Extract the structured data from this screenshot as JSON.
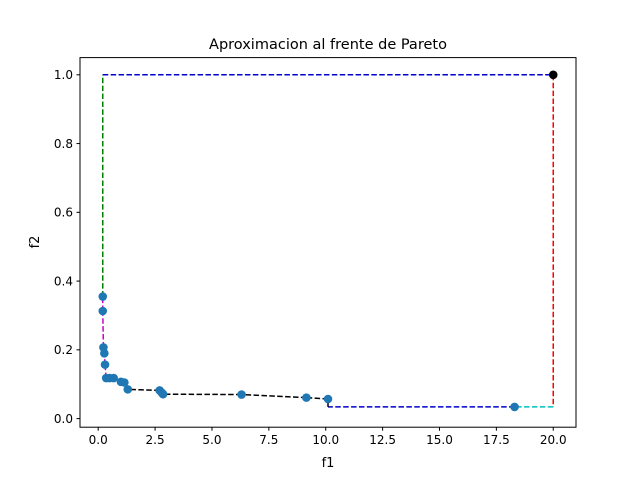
{
  "chart_data": {
    "type": "scatter",
    "title": "Aproximacion al frente de Pareto",
    "xlabel": "f1",
    "ylabel": "f2",
    "xlim": [
      -0.8,
      21.0
    ],
    "ylim": [
      -0.025,
      1.05
    ],
    "grid": false,
    "x_ticks": [
      {
        "value": 0.0,
        "label": "0.0"
      },
      {
        "value": 2.5,
        "label": "2.5"
      },
      {
        "value": 5.0,
        "label": "5.0"
      },
      {
        "value": 7.5,
        "label": "7.5"
      },
      {
        "value": 10.0,
        "label": "10.0"
      },
      {
        "value": 12.5,
        "label": "12.5"
      },
      {
        "value": 15.0,
        "label": "15.0"
      },
      {
        "value": 17.5,
        "label": "17.5"
      },
      {
        "value": 20.0,
        "label": "20.0"
      }
    ],
    "y_ticks": [
      {
        "value": 0.0,
        "label": "0.0"
      },
      {
        "value": 0.2,
        "label": "0.2"
      },
      {
        "value": 0.4,
        "label": "0.4"
      },
      {
        "value": 0.6,
        "label": "0.6"
      },
      {
        "value": 0.8,
        "label": "0.8"
      },
      {
        "value": 1.0,
        "label": "1.0"
      }
    ],
    "points": {
      "color": "#1f77b4",
      "x": [
        0.2,
        0.2,
        0.23,
        0.27,
        0.3,
        0.35,
        0.5,
        0.68,
        1.0,
        1.15,
        1.3,
        2.7,
        2.8,
        2.85,
        6.3,
        9.15,
        10.1,
        18.3
      ],
      "y": [
        0.355,
        0.313,
        0.207,
        0.19,
        0.157,
        0.118,
        0.118,
        0.118,
        0.107,
        0.105,
        0.085,
        0.082,
        0.075,
        0.071,
        0.07,
        0.061,
        0.057,
        0.034
      ]
    },
    "reference_point": {
      "x": 20.0,
      "y": 1.0,
      "color": "#000000"
    },
    "dashed_segments": [
      {
        "color": "#008000",
        "x": [
          0.2,
          0.2
        ],
        "y": [
          0.355,
          1.0
        ]
      },
      {
        "color": "#0000cc",
        "x": [
          0.2,
          20.0
        ],
        "y": [
          1.0,
          1.0
        ]
      },
      {
        "color": "#ff0000",
        "x": [
          20.0,
          20.0
        ],
        "y": [
          1.0,
          0.034
        ]
      },
      {
        "color": "#00bfbf",
        "x": [
          20.0,
          18.3
        ],
        "y": [
          0.034,
          0.034
        ]
      },
      {
        "color": "#0000cc",
        "x": [
          18.3,
          10.1
        ],
        "y": [
          0.034,
          0.034
        ]
      },
      {
        "color": "#000000",
        "x": [
          10.1,
          10.1
        ],
        "y": [
          0.034,
          0.057
        ]
      },
      {
        "color": "#000000",
        "x": [
          10.1,
          9.15
        ],
        "y": [
          0.057,
          0.061
        ]
      },
      {
        "color": "#000000",
        "x": [
          9.15,
          6.3
        ],
        "y": [
          0.061,
          0.07
        ]
      },
      {
        "color": "#000000",
        "x": [
          6.3,
          2.85
        ],
        "y": [
          0.07,
          0.071
        ]
      },
      {
        "color": "#000000",
        "x": [
          2.85,
          2.7
        ],
        "y": [
          0.071,
          0.082
        ]
      },
      {
        "color": "#000000",
        "x": [
          2.7,
          1.3
        ],
        "y": [
          0.082,
          0.085
        ]
      },
      {
        "color": "#000000",
        "x": [
          1.3,
          1.15
        ],
        "y": [
          0.085,
          0.105
        ]
      },
      {
        "color": "#000000",
        "x": [
          1.15,
          1.0
        ],
        "y": [
          0.105,
          0.107
        ]
      },
      {
        "color": "#000000",
        "x": [
          1.0,
          0.68
        ],
        "y": [
          0.107,
          0.118
        ]
      },
      {
        "color": "#000000",
        "x": [
          0.68,
          0.35
        ],
        "y": [
          0.118,
          0.118
        ]
      },
      {
        "color": "#cc00cc",
        "x": [
          0.35,
          0.3
        ],
        "y": [
          0.118,
          0.157
        ]
      },
      {
        "color": "#cc00cc",
        "x": [
          0.3,
          0.27
        ],
        "y": [
          0.157,
          0.19
        ]
      },
      {
        "color": "#cc00cc",
        "x": [
          0.27,
          0.23
        ],
        "y": [
          0.19,
          0.207
        ]
      },
      {
        "color": "#cc00cc",
        "x": [
          0.23,
          0.2
        ],
        "y": [
          0.207,
          0.313
        ]
      },
      {
        "color": "#cc00cc",
        "x": [
          0.2,
          0.2
        ],
        "y": [
          0.313,
          0.355
        ]
      }
    ]
  }
}
